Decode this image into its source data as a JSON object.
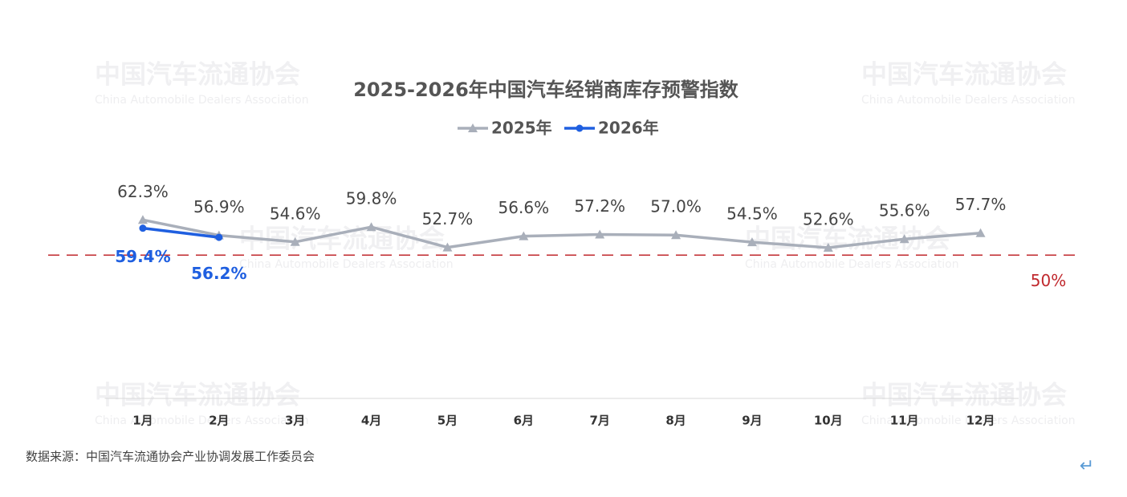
{
  "chart_data": {
    "type": "line",
    "title": "2025-2026年中国汽车经销商库存预警指数",
    "categories": [
      "1月",
      "2月",
      "3月",
      "4月",
      "5月",
      "6月",
      "7月",
      "8月",
      "9月",
      "10月",
      "11月",
      "12月"
    ],
    "series": [
      {
        "name": "2025年",
        "color": "#a9afba",
        "marker": "triangle",
        "values": [
          62.3,
          56.9,
          54.6,
          59.8,
          52.7,
          56.6,
          57.2,
          57.0,
          54.5,
          52.6,
          55.6,
          57.7
        ],
        "value_labels": [
          "62.3%",
          "56.9%",
          "54.6%",
          "59.8%",
          "52.7%",
          "56.6%",
          "57.2%",
          "57.0%",
          "54.5%",
          "52.6%",
          "55.6%",
          "57.7%"
        ]
      },
      {
        "name": "2026年",
        "color": "#1f5fe0",
        "marker": "circle",
        "values": [
          59.4,
          56.2,
          null,
          null,
          null,
          null,
          null,
          null,
          null,
          null,
          null,
          null
        ],
        "value_labels": [
          "59.4%",
          "56.2%",
          null,
          null,
          null,
          null,
          null,
          null,
          null,
          null,
          null,
          null
        ]
      }
    ],
    "ylim": [
      0,
      80
    ],
    "reference_line": {
      "value": 50,
      "label": "50%",
      "color": "#c0282d"
    },
    "legend": "top",
    "source": "数据来源：中国汽车流通协会产业协调发展工作委员会",
    "watermark": {
      "cn": "中国汽车流通协会",
      "en": "China Automobile Dealers Association"
    },
    "cursor_symbol": "↵"
  }
}
